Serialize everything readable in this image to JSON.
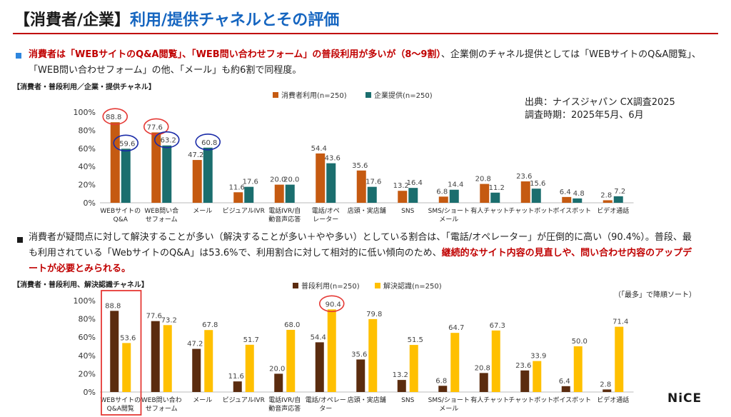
{
  "header": {
    "title_black": "【消費者/企業】",
    "title_blue": "利用/提供チャネルとその評価"
  },
  "para1": {
    "part1_red": "消費者は「WEBサイトのQ&A閲覧」、「WEB問い合わせフォーム」の普段利用が多いが（8～9割）",
    "part2": "、企業側のチャネル提供としては「WEBサイトのQ&A閲覧」、「WEB問い合わせフォーム」の他、「メール」も約6割で同程度。"
  },
  "para2": {
    "part1": "消費者が疑問点に対して解決することが多い（解決することが多い＋やや多い）としている割合は、「電話/オペレーター」が圧倒的に高い（90.4%）。普段、最も利用されている「WebサイトのQ&A」は53.6%で、利用割合に対して相対的に低い傾向のため、",
    "part2_red": "継続的なサイト内容の見直しや、問い合わせ内容のアップデートが必要とみられる。"
  },
  "source": {
    "line1": "出典：ナイスジャパン CX調査2025",
    "line2": "調査時期：2025年5月、6月"
  },
  "note": "（「最多」で降順ソート）",
  "logo": "NiCE",
  "colors": {
    "title_blue": "#1565c0",
    "accent_red": "#c00000",
    "consumer": "#c55a11",
    "enterprise": "#1b6e6e",
    "usage": "#5b2c0f",
    "resolve": "#ffc000",
    "highlight_red": "#e53935",
    "highlight_blue": "#1a2ba8"
  },
  "chart_data": [
    {
      "type": "bar",
      "title": "【消費者・普段利用／企業・提供チャネル】",
      "categories": [
        "WEBサイトの|Q&A",
        "WEB問い合|せフォーム",
        "メール",
        "ビジュアルIVR",
        "電話IVR/自|動音声応答",
        "電話/オペ|レーター",
        "店頭・実店舗",
        "SNS",
        "SMS/ショート|メール",
        "有人チャット",
        "チャットボット",
        "ボイスボット",
        "ビデオ通話"
      ],
      "series": [
        {
          "name": "消費者利用(n=250)",
          "values": [
            88.8,
            77.6,
            47.2,
            11.6,
            20.0,
            54.4,
            35.6,
            13.2,
            6.8,
            20.8,
            23.6,
            6.4,
            2.8
          ]
        },
        {
          "name": "企業提供(n=250)",
          "values": [
            59.6,
            63.2,
            60.8,
            17.6,
            20.0,
            43.6,
            17.6,
            16.4,
            14.4,
            11.2,
            15.6,
            4.8,
            7.2
          ]
        }
      ],
      "yticks": [
        "0%",
        "20%",
        "40%",
        "60%",
        "80%",
        "100%"
      ],
      "ylim": [
        0,
        100
      ],
      "legend": "top-center",
      "highlights": [
        {
          "series": 0,
          "index": 0,
          "color": "red"
        },
        {
          "series": 0,
          "index": 1,
          "color": "red"
        },
        {
          "series": 1,
          "index": 0,
          "color": "blue"
        },
        {
          "series": 1,
          "index": 1,
          "color": "blue"
        },
        {
          "series": 1,
          "index": 2,
          "color": "blue"
        }
      ]
    },
    {
      "type": "bar",
      "title": "【消費者・普段利用、解決認識チャネル】",
      "categories": [
        "WEBサイトの|Q&A閲覧",
        "WEB問い合わ|せフォーム",
        "メール",
        "ビジュアルIVR",
        "電話IVR/自|動音声応答",
        "電話/オペレー|ター",
        "店頭・実店舗",
        "SNS",
        "SMS/ショート|メール",
        "有人チャット",
        "チャットボット",
        "ボイスボット",
        "ビデオ通話"
      ],
      "series": [
        {
          "name": "普段利用(n=250)",
          "values": [
            88.8,
            77.6,
            47.2,
            11.6,
            20.0,
            54.4,
            35.6,
            13.2,
            6.8,
            20.8,
            23.6,
            6.4,
            2.8
          ]
        },
        {
          "name": "解決認識(n=250)",
          "values": [
            53.6,
            73.2,
            67.8,
            51.7,
            68.0,
            90.4,
            79.8,
            51.5,
            64.7,
            67.3,
            33.9,
            50.0,
            71.4
          ]
        }
      ],
      "yticks": [
        "0%",
        "20%",
        "40%",
        "60%",
        "80%",
        "100%"
      ],
      "ylim": [
        0,
        100
      ],
      "legend": "top-center",
      "highlights": [
        {
          "series": 1,
          "index": 5,
          "color": "red"
        }
      ],
      "boxed_category": 0
    }
  ]
}
